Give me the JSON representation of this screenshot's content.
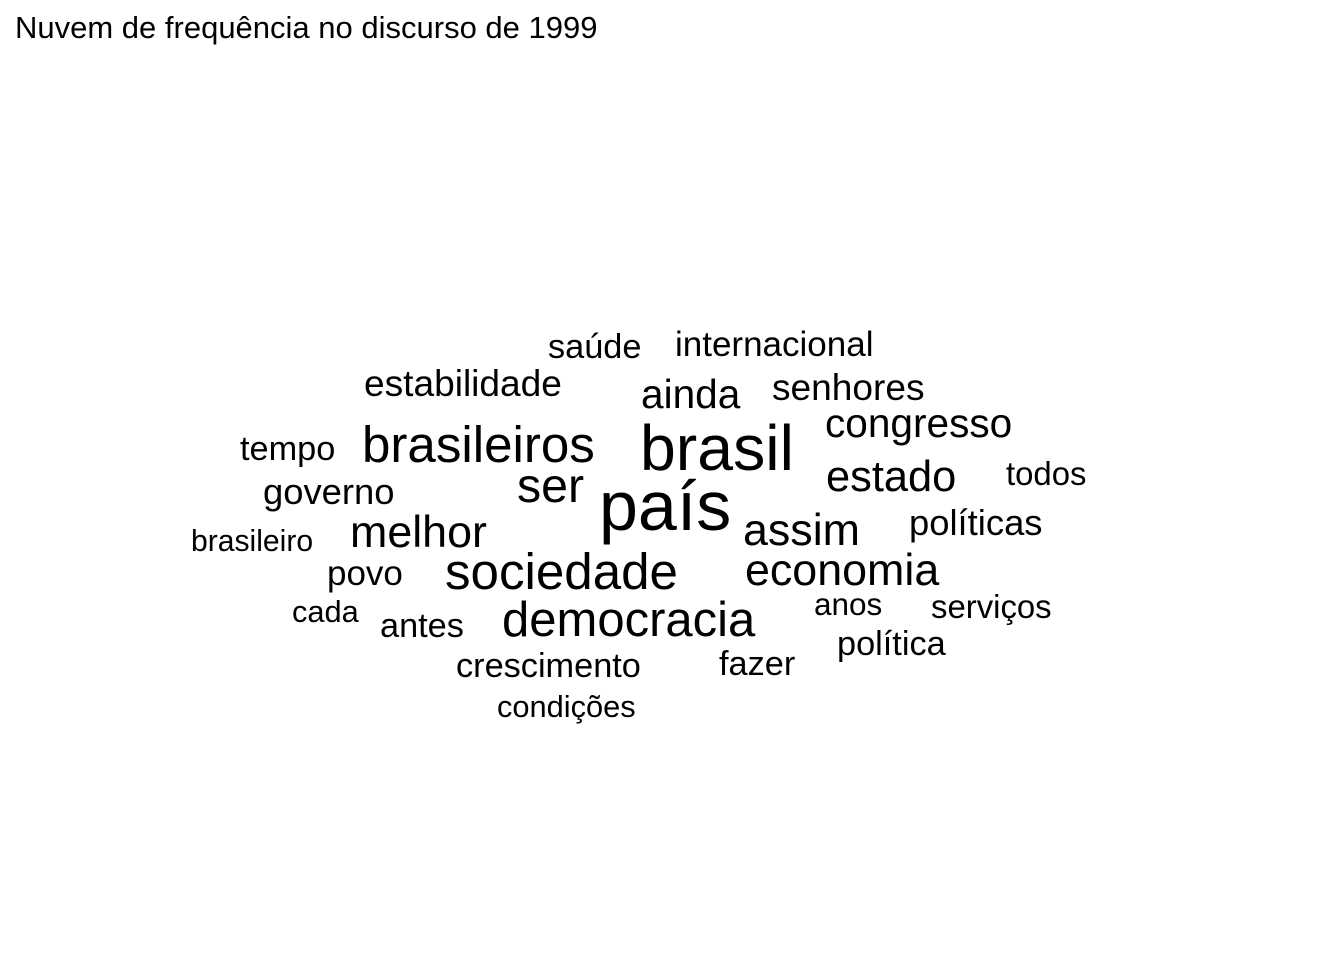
{
  "chart_data": {
    "type": "wordcloud",
    "title": "Nuvem de frequência no discurso de 1999",
    "words": [
      {
        "text": "país",
        "weight": 10
      },
      {
        "text": "brasil",
        "weight": 9.2
      },
      {
        "text": "brasileiros",
        "weight": 7.3
      },
      {
        "text": "sociedade",
        "weight": 7.3
      },
      {
        "text": "democracia",
        "weight": 7.0
      },
      {
        "text": "ser",
        "weight": 6.9
      },
      {
        "text": "melhor",
        "weight": 6.4
      },
      {
        "text": "assim",
        "weight": 6.4
      },
      {
        "text": "economia",
        "weight": 6.4
      },
      {
        "text": "estado",
        "weight": 6.2
      },
      {
        "text": "congresso",
        "weight": 5.8
      },
      {
        "text": "ainda",
        "weight": 5.8
      },
      {
        "text": "estabilidade",
        "weight": 5.3
      },
      {
        "text": "senhores",
        "weight": 5.3
      },
      {
        "text": "governo",
        "weight": 5.2
      },
      {
        "text": "políticas",
        "weight": 5.2
      },
      {
        "text": "internacional",
        "weight": 5.0
      },
      {
        "text": "povo",
        "weight": 5.0
      },
      {
        "text": "crescimento",
        "weight": 4.9
      },
      {
        "text": "política",
        "weight": 4.9
      },
      {
        "text": "saúde",
        "weight": 4.9
      },
      {
        "text": "tempo",
        "weight": 4.9
      },
      {
        "text": "antes",
        "weight": 4.9
      },
      {
        "text": "fazer",
        "weight": 4.9
      },
      {
        "text": "serviços",
        "weight": 4.7
      },
      {
        "text": "todos",
        "weight": 4.7
      },
      {
        "text": "anos",
        "weight": 4.5
      },
      {
        "text": "condições",
        "weight": 4.4
      },
      {
        "text": "cada",
        "weight": 4.4
      },
      {
        "text": "brasileiro",
        "weight": 4.3
      }
    ]
  }
}
